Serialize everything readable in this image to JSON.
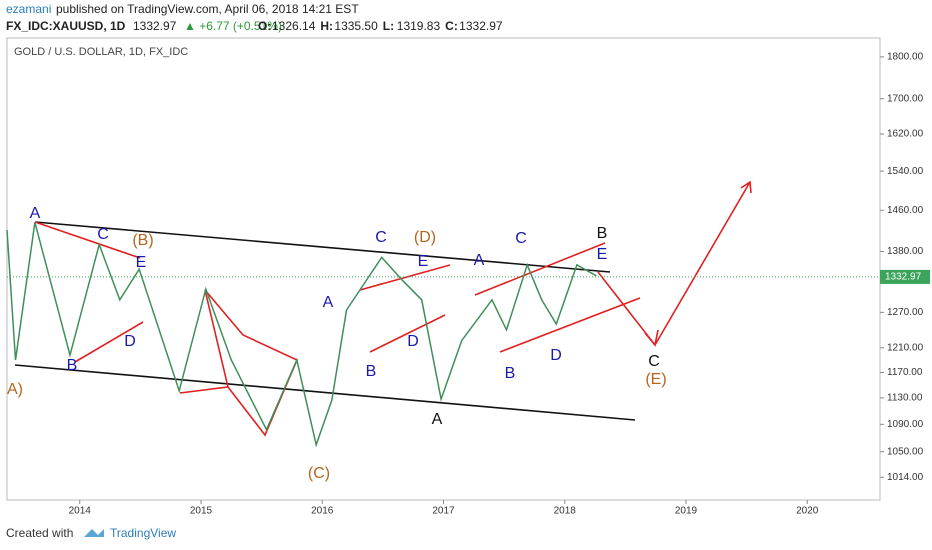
{
  "header": {
    "author": "ezamani",
    "published": "published on TradingView.com, April 06, 2018 14:21 EST",
    "symbol": "FX_IDC:XAUUSD, 1D",
    "last": "1332.97",
    "change": "▲ +6.77 (+0.51%)",
    "ohlc": [
      {
        "label": "O:",
        "value": "1326.14"
      },
      {
        "label": "H:",
        "value": "1335.50"
      },
      {
        "label": "L:",
        "value": "1319.83"
      },
      {
        "label": "C:",
        "value": "1332.97"
      }
    ]
  },
  "chart_data": {
    "type": "line",
    "title": "GOLD / U.S. DOLLAR, 1D, FX_IDC",
    "log_scale": true,
    "color": "#3f8f5a",
    "x": [
      2013.4,
      2013.47,
      2013.63,
      2013.92,
      2014.16,
      2014.33,
      2014.49,
      2014.82,
      2015.04,
      2015.25,
      2015.54,
      2015.79,
      2015.95,
      2016.08,
      2016.2,
      2016.49,
      2016.66,
      2016.82,
      2016.98,
      2017.15,
      2017.4,
      2017.52,
      2017.69,
      2017.81,
      2017.93,
      2018.1,
      2018.26
    ],
    "values": [
      1421,
      1190,
      1436,
      1198,
      1393,
      1292,
      1347,
      1141,
      1311,
      1190,
      1082,
      1190,
      1060,
      1127,
      1274,
      1369,
      1327,
      1292,
      1128,
      1222,
      1292,
      1240,
      1355,
      1292,
      1250,
      1355,
      1335
    ],
    "last_price": 1332.97,
    "xlim": [
      2013.4,
      2020.6
    ],
    "xticks": [
      2014,
      2015,
      2016,
      2017,
      2018,
      2019,
      2020
    ],
    "ylim": [
      983,
      1847
    ],
    "yticks": [
      {
        "value": 1800,
        "label": "1800.00"
      },
      {
        "value": 1700,
        "label": "1700.00"
      },
      {
        "value": 1620,
        "label": "1620.00"
      },
      {
        "value": 1540,
        "label": "1540.00"
      },
      {
        "value": 1460,
        "label": "1460.00"
      },
      {
        "value": 1380,
        "label": "1380.00"
      },
      {
        "value": 1270,
        "label": "1270.00"
      },
      {
        "value": 1210,
        "label": "1210.00"
      },
      {
        "value": 1170,
        "label": "1170.00"
      },
      {
        "value": 1130,
        "label": "1130.00"
      },
      {
        "value": 1090,
        "label": "1090.00"
      },
      {
        "value": 1050,
        "label": "1050.00"
      },
      {
        "value": 1014,
        "label": "1014.00"
      }
    ],
    "annotations": [
      "A)",
      "A",
      "C",
      "(B)",
      "E",
      "D",
      "B",
      "A",
      "B",
      "C",
      "(D)",
      "E",
      "D",
      "(C)",
      "A",
      "A",
      "C",
      "B",
      "D",
      "B",
      "E",
      "C",
      "(E)"
    ]
  },
  "footer": {
    "created": "Created with",
    "brand": "TradingView"
  }
}
